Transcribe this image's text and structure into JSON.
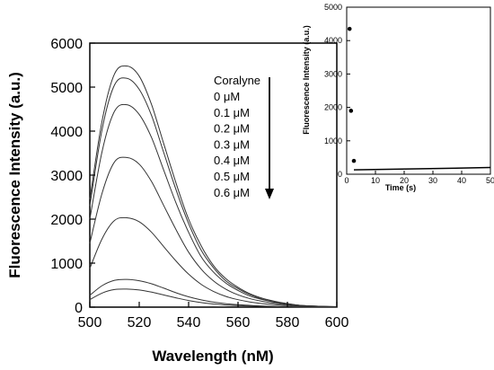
{
  "chart_data": [
    {
      "type": "line",
      "xlabel": "Wavelength (nM)",
      "ylabel": "Fluorescence Intensity (a.u.)",
      "xlim": [
        500,
        600
      ],
      "ylim": [
        0,
        6000
      ],
      "xticks": [
        "500",
        "520",
        "540",
        "560",
        "580",
        "600"
      ],
      "yticks": [
        "0",
        "1000",
        "2000",
        "3000",
        "4000",
        "5000",
        "6000"
      ],
      "grid": false,
      "legend": {
        "title": "Coralyne",
        "entries": [
          "0 μM",
          "0.1 μM",
          "0.2 μM",
          "0.3 μM",
          "0.4 μM",
          "0.5 μM",
          "0.6 μM"
        ],
        "placement": "top-center",
        "arrow": "down"
      },
      "x": [
        500,
        505,
        510,
        515,
        520,
        525,
        530,
        535,
        540,
        545,
        550,
        555,
        560,
        565,
        570,
        575,
        580,
        585,
        590,
        595,
        600
      ],
      "series": [
        {
          "values": [
            2450,
            4250,
            5300,
            5480,
            5250,
            4600,
            3700,
            2800,
            2000,
            1400,
            950,
            650,
            450,
            300,
            200,
            130,
            80,
            40,
            25,
            15,
            10
          ]
        },
        {
          "values": [
            2300,
            4050,
            5050,
            5200,
            4950,
            4350,
            3500,
            2650,
            1900,
            1300,
            900,
            600,
            420,
            280,
            180,
            120,
            75,
            40,
            25,
            15,
            10
          ]
        },
        {
          "values": [
            2000,
            3550,
            4450,
            4600,
            4380,
            3850,
            3100,
            2350,
            1700,
            1150,
            800,
            550,
            380,
            250,
            170,
            110,
            70,
            40,
            25,
            15,
            10
          ]
        },
        {
          "values": [
            1450,
            2600,
            3300,
            3400,
            3250,
            2850,
            2300,
            1750,
            1250,
            870,
            600,
            410,
            280,
            190,
            130,
            85,
            55,
            30,
            20,
            12,
            8
          ]
        },
        {
          "values": [
            880,
            1560,
            1970,
            2030,
            1940,
            1700,
            1370,
            1040,
            750,
            520,
            360,
            245,
            170,
            115,
            80,
            55,
            35,
            20,
            12,
            8,
            5
          ]
        },
        {
          "values": [
            270,
            490,
            610,
            630,
            600,
            530,
            430,
            325,
            235,
            165,
            115,
            80,
            55,
            38,
            26,
            18,
            12,
            8,
            5,
            3,
            2
          ]
        },
        {
          "values": [
            170,
            320,
            400,
            410,
            390,
            340,
            275,
            210,
            150,
            105,
            72,
            50,
            35,
            24,
            17,
            12,
            8,
            5,
            3,
            2,
            1
          ]
        }
      ]
    },
    {
      "type": "scatter",
      "xlabel": "Time (s)",
      "ylabel": "Fluorescence Intensity (a.u.)",
      "xlim": [
        0,
        50
      ],
      "ylim": [
        0,
        5000
      ],
      "xticks": [
        "0",
        "10",
        "20",
        "30",
        "40",
        "50"
      ],
      "yticks": [
        "0",
        "1000",
        "2000",
        "3000",
        "4000",
        "5000"
      ],
      "grid": false,
      "points": [
        {
          "x": 1,
          "y": 4350
        },
        {
          "x": 1.5,
          "y": 1900
        },
        {
          "x": 2.5,
          "y": 400
        }
      ],
      "line": {
        "x": [
          2.5,
          50
        ],
        "y": [
          130,
          200
        ]
      }
    }
  ]
}
